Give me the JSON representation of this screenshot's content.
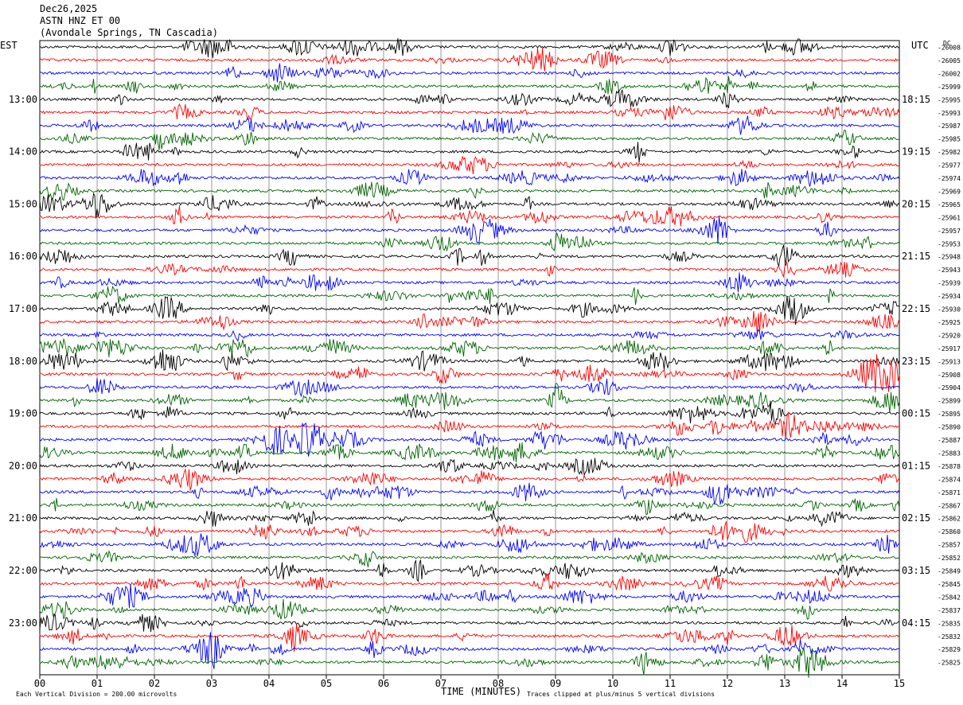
{
  "header": {
    "date": "Dec26,2025",
    "station": "ASTN HNZ ET 00",
    "location": "(Avondale Springs, TN Cascadia)"
  },
  "left_zone_label": "EST",
  "right_zone_label": "UTC",
  "dc_label": "DC",
  "footer": {
    "scale_note": "Each Vertical Division =  200.00 microvolts",
    "xlabel": "TIME (MINUTES)",
    "clip_note": "Traces clipped at plus/minus 5 vertical divisions"
  },
  "colors": {
    "trace_cycle": [
      "#000000",
      "#ff0000",
      "#0000ff",
      "#006400"
    ],
    "grid": "#808080"
  },
  "chart_data": {
    "type": "line",
    "title": "ASTN HNZ ET 00",
    "xlabel": "TIME (MINUTES)",
    "xlim": [
      0,
      15
    ],
    "x_ticks": [
      "00",
      "01",
      "02",
      "03",
      "04",
      "05",
      "06",
      "07",
      "08",
      "09",
      "10",
      "11",
      "12",
      "13",
      "14",
      "15"
    ],
    "trace_minutes_per_line": 15,
    "left_hour_labels": [
      "13:00",
      "14:00",
      "15:00",
      "16:00",
      "17:00",
      "18:00",
      "19:00",
      "20:00",
      "21:00",
      "22:00",
      "23:00"
    ],
    "right_hour_labels": [
      "18:15",
      "19:15",
      "20:15",
      "21:15",
      "22:15",
      "23:15",
      "00:15",
      "01:15",
      "02:15",
      "03:15",
      "04:15"
    ],
    "hour_label_first_line": 4,
    "lines_per_hour": 4,
    "dc_offsets": [
      -26008,
      -26005,
      -26002,
      -25999,
      -25995,
      -25993,
      -25987,
      -25985,
      -25982,
      -25977,
      -25974,
      -25969,
      -25965,
      -25961,
      -25957,
      -25953,
      -25948,
      -25943,
      -25939,
      -25934,
      -25930,
      -25925,
      -25920,
      -25917,
      -25913,
      -25908,
      -25904,
      -25899,
      -25895,
      -25890,
      -25887,
      -25883,
      -25878,
      -25874,
      -25871,
      -25867,
      -25862,
      -25860,
      -25857,
      -25852,
      -25849,
      -25845,
      -25842,
      -25837,
      -25835,
      -25832,
      -25829,
      -25825
    ]
  }
}
